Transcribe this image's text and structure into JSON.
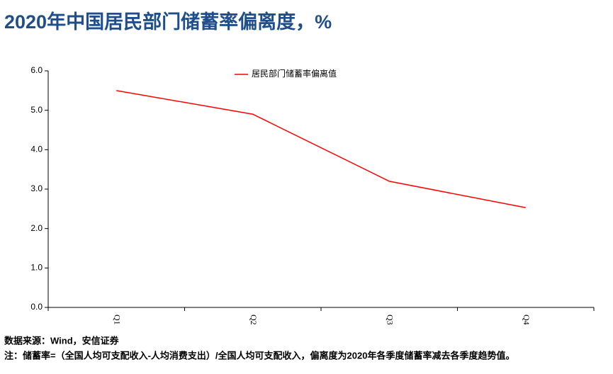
{
  "chart_data": {
    "type": "line",
    "title": "2020年中国居民部门储蓄率偏离度，%",
    "categories": [
      "Q1",
      "Q2",
      "Q3",
      "Q4"
    ],
    "series": [
      {
        "name": "居民部门储蓄率偏离值",
        "color": "#ff0000",
        "values": [
          5.5,
          4.9,
          3.2,
          2.53
        ]
      }
    ],
    "ylim": [
      0,
      6
    ],
    "yticks": [
      {
        "value": 0,
        "label": "0.0"
      },
      {
        "value": 1,
        "label": "1.0"
      },
      {
        "value": 2,
        "label": "2.0"
      },
      {
        "value": 3,
        "label": "3.0"
      },
      {
        "value": 4,
        "label": "4.0"
      },
      {
        "value": 5,
        "label": "5.0"
      },
      {
        "value": 6,
        "label": "6.0"
      }
    ],
    "legend": "top",
    "source": "数据来源：Wind，安信证券",
    "note": "注：储蓄率=（全国人均可支配收入-人均消费支出）/全国人均可支配收入，偏离度为2020年各季度储蓄率减去各季度趋势值。"
  }
}
